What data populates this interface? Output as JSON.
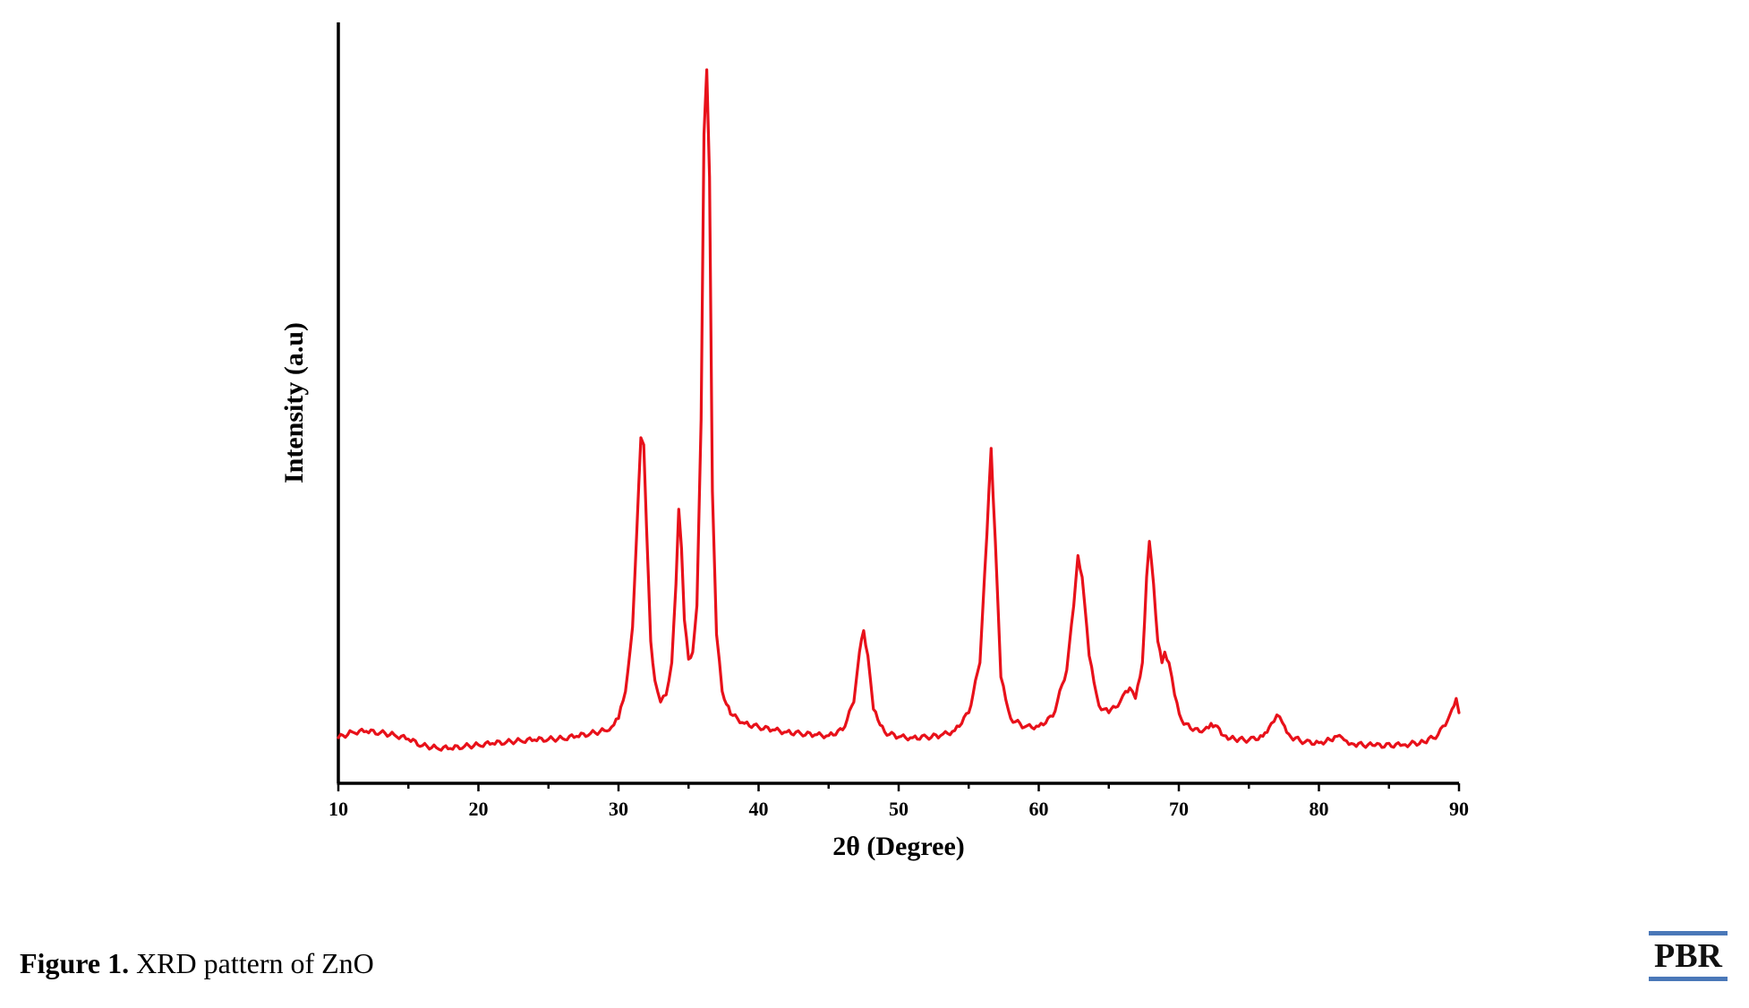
{
  "chart_data": {
    "type": "line",
    "xlabel": "2θ (Degree)",
    "ylabel": "Intensity (a.u)",
    "xlim": [
      10,
      90
    ],
    "ylim": [
      0,
      100
    ],
    "x_ticks": [
      10,
      20,
      30,
      40,
      50,
      60,
      70,
      80,
      90
    ],
    "y_tick_labels_shown": false,
    "grid": false,
    "series": [
      {
        "color": "#e8111a",
        "x": [
          10,
          11,
          12,
          13,
          14,
          15,
          16,
          17,
          18,
          19,
          20,
          21,
          22,
          23,
          24,
          25,
          26,
          27,
          28,
          29,
          29.5,
          30,
          30.5,
          31,
          31.3,
          31.6,
          31.8,
          32.0,
          32.3,
          32.6,
          33.0,
          33.4,
          33.8,
          34.1,
          34.3,
          34.5,
          34.7,
          35.0,
          35.3,
          35.6,
          35.9,
          36.1,
          36.3,
          36.5,
          36.7,
          37.0,
          37.4,
          38,
          39,
          40,
          41,
          42,
          43,
          44,
          45,
          46,
          46.8,
          47.2,
          47.5,
          47.8,
          48.2,
          49,
          50,
          51,
          52,
          53,
          54,
          55,
          55.8,
          56.3,
          56.6,
          56.9,
          57.3,
          58,
          59,
          60,
          61,
          62,
          62.5,
          62.8,
          63.1,
          63.6,
          64.3,
          65,
          65.8,
          66.2,
          66.5,
          66.9,
          67.4,
          67.7,
          67.9,
          68.2,
          68.5,
          68.8,
          69.0,
          69.3,
          69.7,
          70.2,
          71,
          71.8,
          72.3,
          72.6,
          73.2,
          74,
          75,
          76,
          76.6,
          77.0,
          77.4,
          78,
          79,
          80,
          80.8,
          81.3,
          81.8,
          82.5,
          84,
          86,
          87.5,
          88.5,
          89.2,
          89.5,
          89.8,
          90
        ],
        "y": [
          5.5,
          6.3,
          6.4,
          6.2,
          5.9,
          5.3,
          4.4,
          4.1,
          4.0,
          4.3,
          4.5,
          4.7,
          4.9,
          5.1,
          5.2,
          5.3,
          5.4,
          5.7,
          6.1,
          6.5,
          7.0,
          8.2,
          12.0,
          21.0,
          34.0,
          47.5,
          46.5,
          35.0,
          19.0,
          13.5,
          10.5,
          11.5,
          16.0,
          27.0,
          37.5,
          32.0,
          22.0,
          16.5,
          17.5,
          24.0,
          50.0,
          90.0,
          99.0,
          84.0,
          40.0,
          20.0,
          12.0,
          8.8,
          7.5,
          7.0,
          6.6,
          6.3,
          6.1,
          5.9,
          5.8,
          6.6,
          10.5,
          17.5,
          20.5,
          17.0,
          9.5,
          6.3,
          5.6,
          5.5,
          5.6,
          5.8,
          6.5,
          9.0,
          16.0,
          34.0,
          46.0,
          33.0,
          14.0,
          8.2,
          7.0,
          7.1,
          8.5,
          15.0,
          24.0,
          31.0,
          28.0,
          17.0,
          10.0,
          9.0,
          10.5,
          12.0,
          12.5,
          11.0,
          16.0,
          28.0,
          33.0,
          27.0,
          19.0,
          16.0,
          17.5,
          16.0,
          11.5,
          8.0,
          6.5,
          6.6,
          7.5,
          7.2,
          5.8,
          5.3,
          5.2,
          5.7,
          7.5,
          8.7,
          7.6,
          5.6,
          4.9,
          4.8,
          5.2,
          5.7,
          5.2,
          4.6,
          4.4,
          4.5,
          4.9,
          5.9,
          8.0,
          9.5,
          11.0,
          9.0
        ]
      }
    ]
  },
  "caption": {
    "label": "Figure 1.",
    "text": " XRD pattern of ZnO"
  },
  "logo": {
    "text": "PBR"
  }
}
